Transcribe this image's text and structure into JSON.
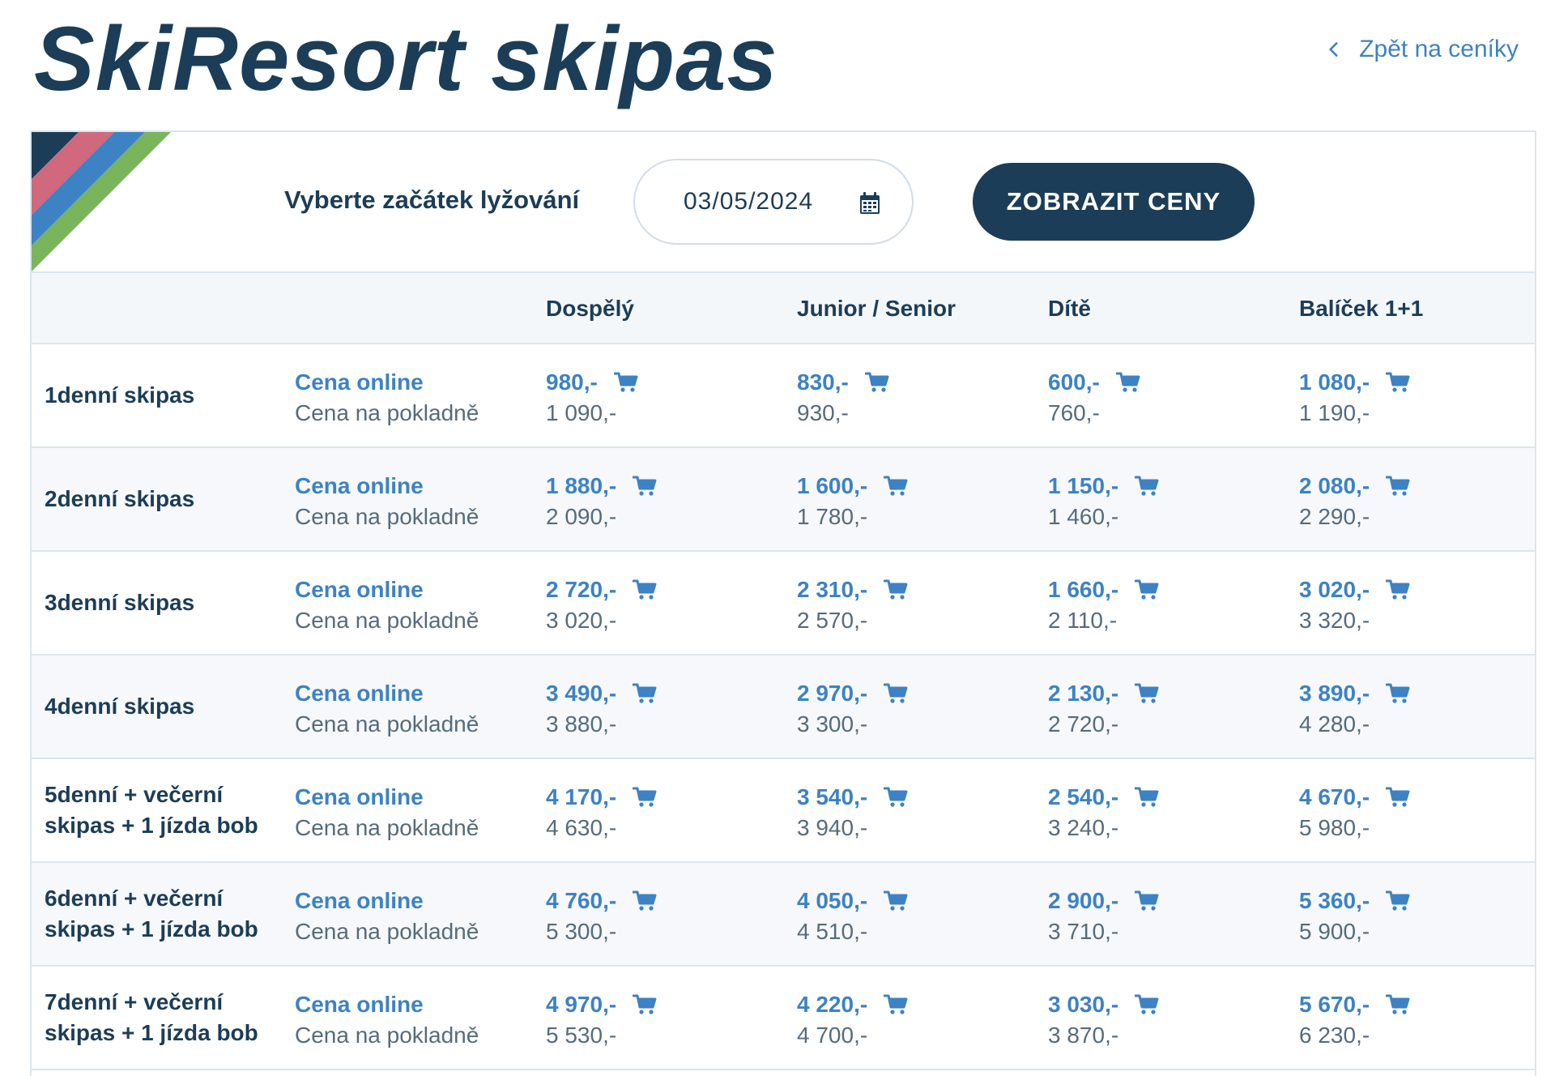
{
  "header": {
    "title": "SkiResort skipas",
    "back_link": "Zpět na ceníky"
  },
  "filter": {
    "label": "Vyberte začátek lyžování",
    "date_value": "03/05/2024",
    "button_label": "ZOBRAZIT CENY"
  },
  "colors": {
    "navy": "#1c3d57",
    "blue": "#3d82c4",
    "stripe_dark": "#1c3d57",
    "stripe_pink": "#d0687e",
    "stripe_blue": "#3d82c4",
    "stripe_green": "#7ab55c"
  },
  "icons": {
    "back": "chevron-left-icon",
    "calendar": "calendar-icon",
    "cart": "cart-icon"
  },
  "table": {
    "columns": [
      "Dospělý",
      "Junior / Senior",
      "Dítě",
      "Balíček 1+1"
    ],
    "online_label": "Cena online",
    "office_label": "Cena na pokladně",
    "rows": [
      {
        "label": "1denní skipas",
        "prices": [
          {
            "online": "980,-",
            "office": "1 090,-"
          },
          {
            "online": "830,-",
            "office": "930,-"
          },
          {
            "online": "600,-",
            "office": "760,-"
          },
          {
            "online": "1 080,-",
            "office": "1 190,-"
          }
        ]
      },
      {
        "label": "2denní skipas",
        "prices": [
          {
            "online": "1 880,-",
            "office": "2 090,-"
          },
          {
            "online": "1 600,-",
            "office": "1 780,-"
          },
          {
            "online": "1 150,-",
            "office": "1 460,-"
          },
          {
            "online": "2 080,-",
            "office": "2 290,-"
          }
        ]
      },
      {
        "label": "3denní skipas",
        "prices": [
          {
            "online": "2 720,-",
            "office": "3 020,-"
          },
          {
            "online": "2 310,-",
            "office": "2 570,-"
          },
          {
            "online": "1 660,-",
            "office": "2 110,-"
          },
          {
            "online": "3 020,-",
            "office": "3 320,-"
          }
        ]
      },
      {
        "label": "4denní skipas",
        "prices": [
          {
            "online": "3 490,-",
            "office": "3 880,-"
          },
          {
            "online": "2 970,-",
            "office": "3 300,-"
          },
          {
            "online": "2 130,-",
            "office": "2 720,-"
          },
          {
            "online": "3 890,-",
            "office": "4 280,-"
          }
        ]
      },
      {
        "label": "5denní + večerní skipas + 1 jízda bob",
        "prices": [
          {
            "online": "4 170,-",
            "office": "4 630,-"
          },
          {
            "online": "3 540,-",
            "office": "3 940,-"
          },
          {
            "online": "2 540,-",
            "office": "3 240,-"
          },
          {
            "online": "4 670,-",
            "office": "5 980,-"
          }
        ]
      },
      {
        "label": "6denní + večerní skipas + 1 jízda bob",
        "prices": [
          {
            "online": "4 760,-",
            "office": "5 300,-"
          },
          {
            "online": "4 050,-",
            "office": "4 510,-"
          },
          {
            "online": "2 900,-",
            "office": "3 710,-"
          },
          {
            "online": "5 360,-",
            "office": "5 900,-"
          }
        ]
      },
      {
        "label": "7denní + večerní skipas + 1 jízda bob",
        "prices": [
          {
            "online": "4 970,-",
            "office": "5 530,-"
          },
          {
            "online": "4 220,-",
            "office": "4 700,-"
          },
          {
            "online": "3 030,-",
            "office": "3 870,-"
          },
          {
            "online": "5 670,-",
            "office": "6 230,-"
          }
        ]
      }
    ]
  }
}
